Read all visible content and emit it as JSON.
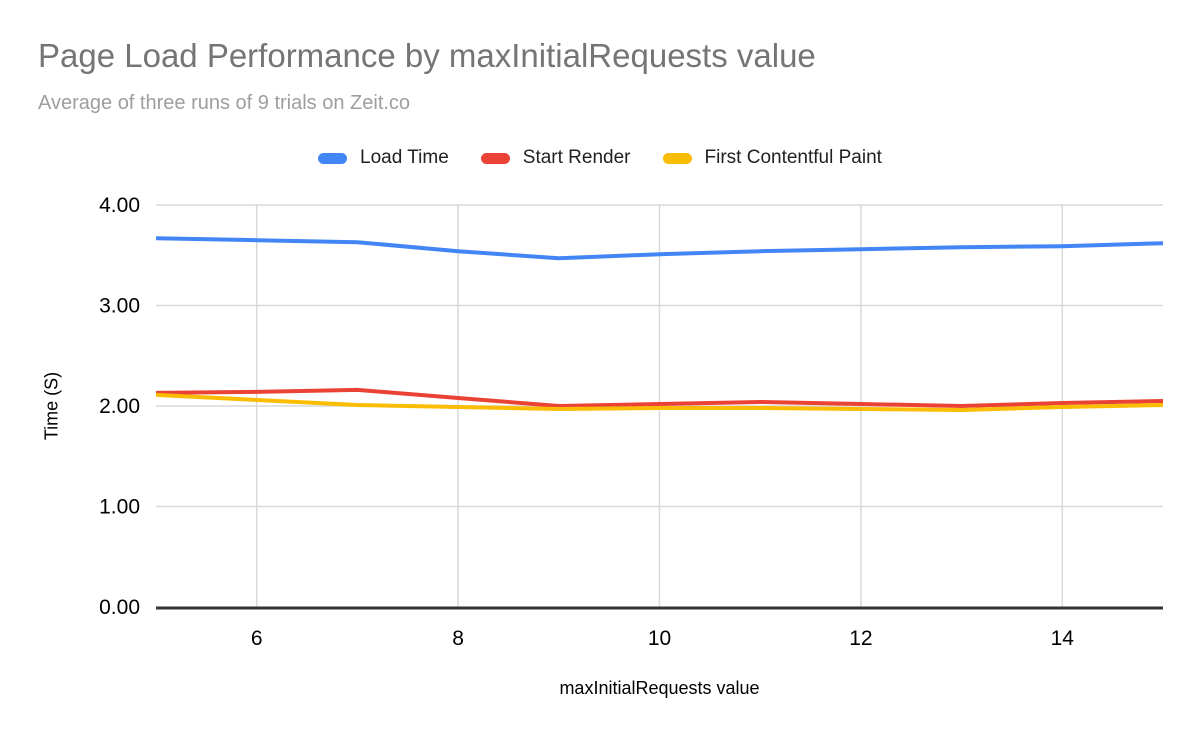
{
  "chart_data": {
    "type": "line",
    "title": "Page Load Performance by maxInitialRequests value",
    "subtitle": "Average of three runs of 9 trials on Zeit.co",
    "xlabel": "maxInitialRequests value",
    "ylabel": "Time (S)",
    "x": [
      5,
      6,
      7,
      8,
      9,
      10,
      11,
      12,
      13,
      14,
      15
    ],
    "series": [
      {
        "name": "Load Time",
        "color": "#4285F4",
        "values": [
          3.67,
          3.65,
          3.63,
          3.54,
          3.47,
          3.51,
          3.54,
          3.56,
          3.58,
          3.59,
          3.62
        ]
      },
      {
        "name": "Start Render",
        "color": "#EA4335",
        "values": [
          2.13,
          2.14,
          2.16,
          2.08,
          2.0,
          2.02,
          2.04,
          2.02,
          2.0,
          2.03,
          2.05
        ]
      },
      {
        "name": "First Contentful Paint",
        "color": "#FBBC04",
        "values": [
          2.11,
          2.06,
          2.01,
          1.99,
          1.97,
          1.98,
          1.98,
          1.97,
          1.96,
          1.99,
          2.01
        ]
      }
    ],
    "xlim": [
      5,
      15
    ],
    "ylim": [
      0,
      4
    ],
    "x_ticks": [
      6,
      8,
      10,
      12,
      14
    ],
    "y_ticks": [
      "0.00",
      "1.00",
      "2.00",
      "3.00",
      "4.00"
    ],
    "grid": true,
    "legend_position": "top",
    "colors": {
      "title": "#757575",
      "subtitle": "#9e9e9e",
      "gridline": "#d9d9d9",
      "axis_line": "#333333",
      "tick_label": "#000000"
    }
  }
}
